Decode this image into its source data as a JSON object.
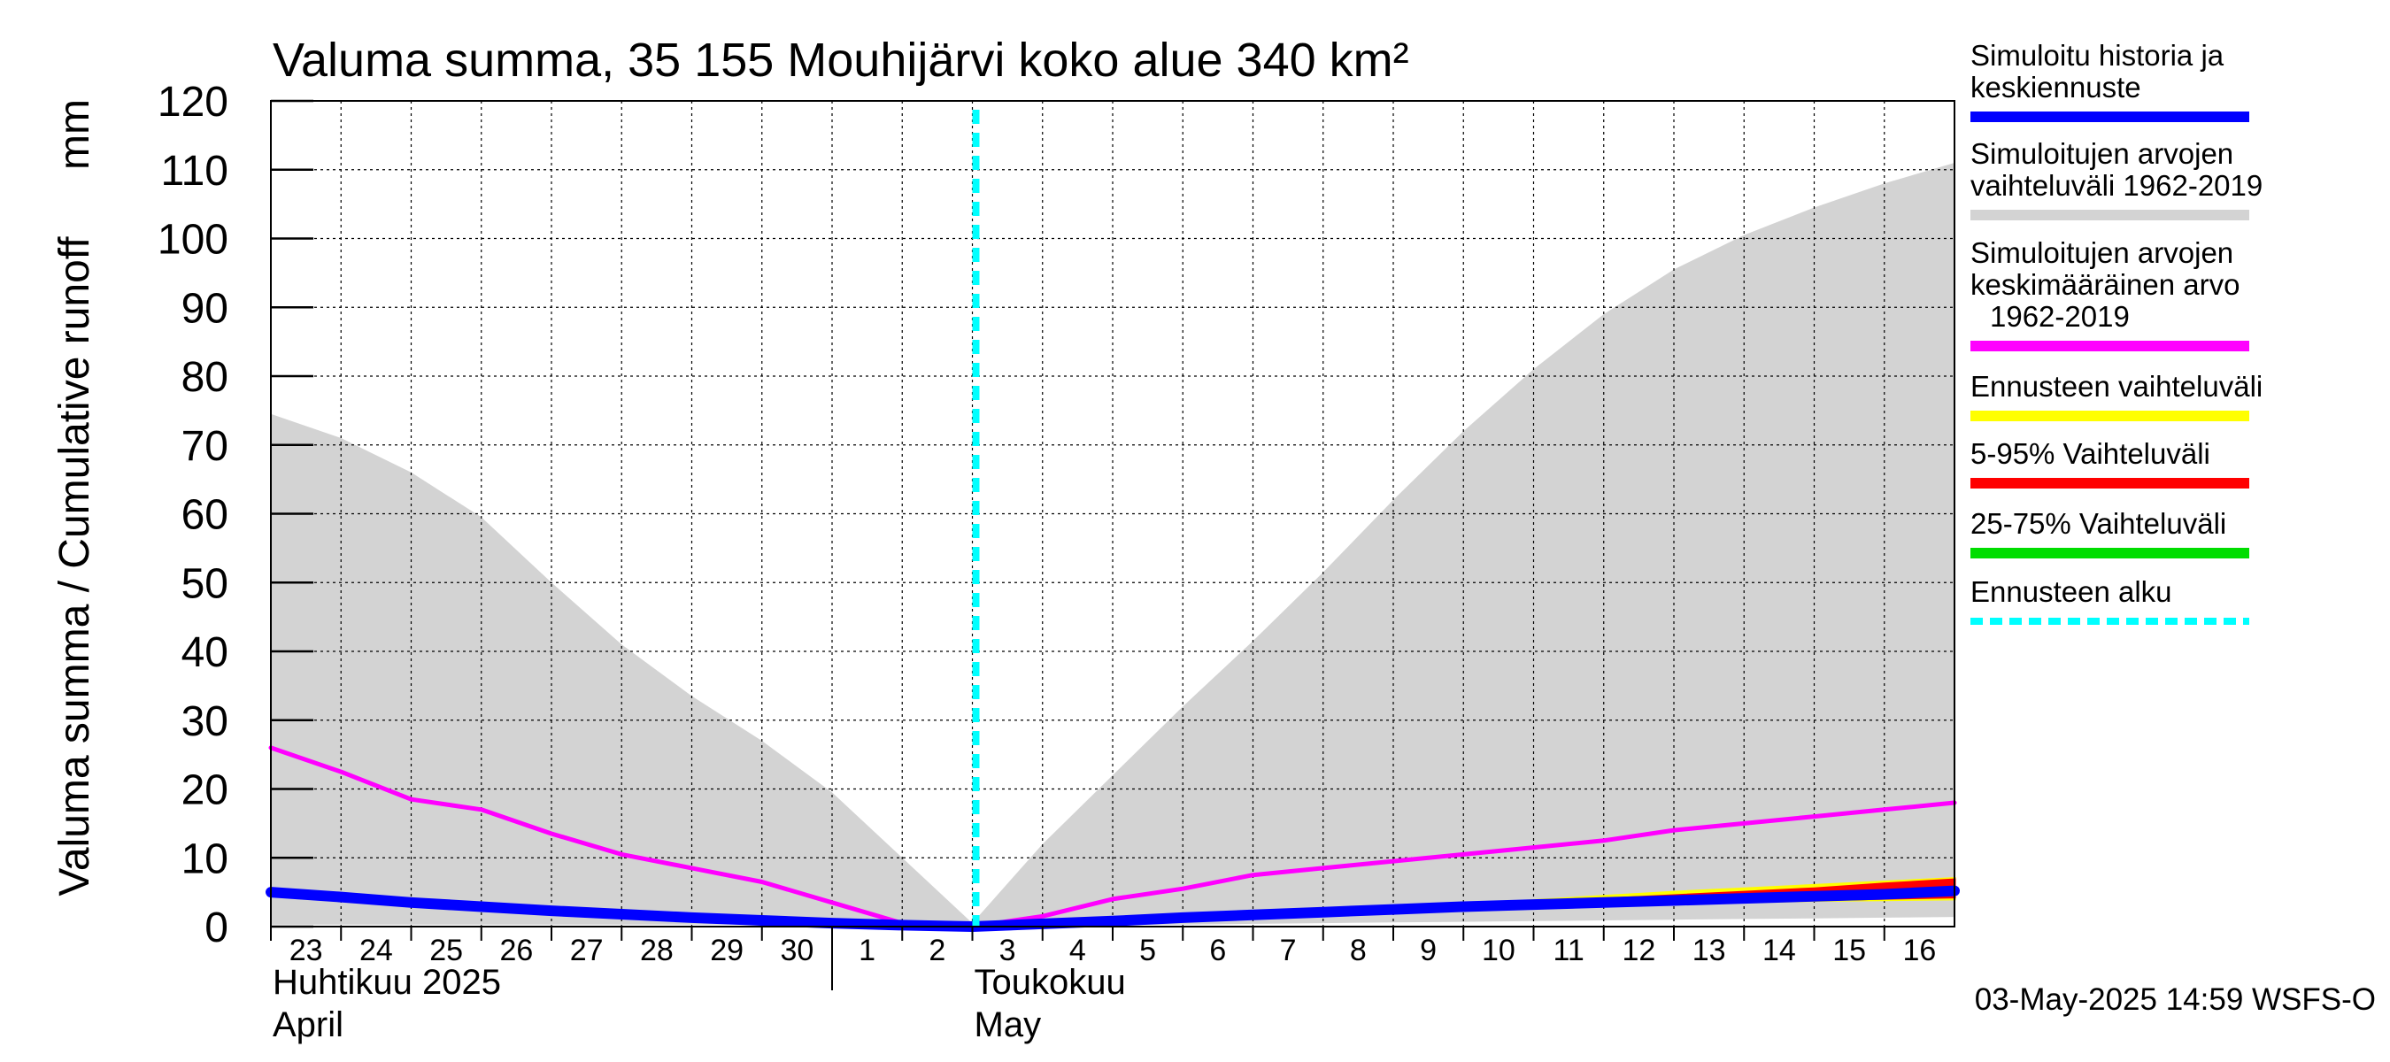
{
  "chart_data": {
    "type": "area",
    "title": "Valuma summa, 35 155 Mouhijärvi koko alue 340 km²",
    "ylabel": "Valuma summa / Cumulative runoff",
    "yunit": "mm",
    "ylim": [
      0,
      120
    ],
    "yticks": [
      0,
      10,
      20,
      30,
      40,
      50,
      60,
      70,
      80,
      90,
      100,
      110,
      120
    ],
    "x_start": "2025-04-23",
    "x_end": "2025-05-16",
    "x_tick_labels": [
      "23",
      "24",
      "25",
      "26",
      "27",
      "28",
      "29",
      "30",
      "1",
      "2",
      "3",
      "4",
      "5",
      "6",
      "7",
      "8",
      "9",
      "10",
      "11",
      "12",
      "13",
      "14",
      "15",
      "16"
    ],
    "month_labels": [
      {
        "fi": "Huhtikuu  2025",
        "en": "April"
      },
      {
        "fi": "Toukokuu",
        "en": "May"
      }
    ],
    "forecast_start": "2025-05-03",
    "grid": true,
    "legend_position": "right",
    "legend": [
      {
        "label": "Simuloitu historia ja keskiennuste",
        "color": "#0000ff",
        "style": "solid"
      },
      {
        "label": "Simuloitujen arvojen vaihteluväli 1962-2019",
        "color": "#d3d3d3",
        "style": "solid"
      },
      {
        "label": "Simuloitujen arvojen keskimääräinen arvo 1962-2019",
        "color": "#ff00ff",
        "style": "solid"
      },
      {
        "label": "Ennusteen vaihteluväli",
        "color": "#ffff00",
        "style": "solid"
      },
      {
        "label": "5-95% Vaihteluväli",
        "color": "#ff0000",
        "style": "solid"
      },
      {
        "label": "25-75% Vaihteluväli",
        "color": "#00dd00",
        "style": "solid"
      },
      {
        "label": "Ennusteen alku",
        "color": "#00ffff",
        "style": "dashed"
      }
    ],
    "x": [
      "2025-04-23",
      "2025-04-24",
      "2025-04-25",
      "2025-04-26",
      "2025-04-27",
      "2025-04-28",
      "2025-04-29",
      "2025-04-30",
      "2025-05-01",
      "2025-05-02",
      "2025-05-03",
      "2025-05-04",
      "2025-05-05",
      "2025-05-06",
      "2025-05-07",
      "2025-05-08",
      "2025-05-09",
      "2025-05-10",
      "2025-05-11",
      "2025-05-12",
      "2025-05-13",
      "2025-05-14",
      "2025-05-15",
      "2025-05-16",
      "2025-05-17"
    ],
    "range_band": {
      "upper": [
        74.5,
        71,
        66,
        59.5,
        50,
        41,
        33.5,
        27,
        19.5,
        10,
        0.5,
        12,
        22,
        32,
        41.5,
        51.5,
        62,
        72,
        81,
        89,
        95.5,
        100.5,
        104.5,
        108,
        111
      ],
      "lower": [
        0.3,
        0.3,
        0.3,
        0.3,
        0.3,
        0.3,
        0.3,
        0.3,
        0.3,
        0.3,
        0,
        0.1,
        0.2,
        0.3,
        0.4,
        0.5,
        0.6,
        0.7,
        0.8,
        0.9,
        1.0,
        1.1,
        1.2,
        1.3,
        1.4
      ]
    },
    "series": [
      {
        "name": "Simuloitujen arvojen keskimääräinen arvo 1962-2019",
        "color": "#ff00ff",
        "values": [
          26,
          22.5,
          18.5,
          17,
          13.5,
          10.5,
          8.5,
          6.5,
          3.5,
          0.5,
          0,
          1.5,
          4,
          5.5,
          7.5,
          8.5,
          9.5,
          10.5,
          11.5,
          12.5,
          14,
          15,
          16,
          17,
          18
        ]
      },
      {
        "name": "Simuloitu historia ja keskiennuste",
        "color": "#0000ff",
        "values": [
          5,
          4.3,
          3.5,
          2.9,
          2.3,
          1.8,
          1.3,
          0.9,
          0.5,
          0.2,
          0,
          0.4,
          0.8,
          1.3,
          1.7,
          2.1,
          2.5,
          2.9,
          3.2,
          3.5,
          3.8,
          4.1,
          4.4,
          4.7,
          5.2
        ]
      }
    ],
    "forecast_bands": [
      {
        "name": "Ennusteen vaihteluväli",
        "color": "#ffff00",
        "lower": [
          0,
          0.4,
          0.8,
          1.2,
          1.6,
          1.9,
          2.2,
          2.5,
          2.8,
          3.1,
          3.4,
          3.6,
          3.8,
          3.9,
          4.0
        ],
        "upper": [
          0,
          0.5,
          0.9,
          1.4,
          1.8,
          2.3,
          2.7,
          3.2,
          3.8,
          4.4,
          5.0,
          5.5,
          6.0,
          6.5,
          7.0
        ]
      },
      {
        "name": "5-95% Vaihteluväli",
        "color": "#ff0000",
        "lower": [
          0,
          0.4,
          0.8,
          1.2,
          1.6,
          2.0,
          2.3,
          2.6,
          2.9,
          3.2,
          3.5,
          3.7,
          3.9,
          4.1,
          4.3
        ],
        "upper": [
          0,
          0.4,
          0.9,
          1.3,
          1.8,
          2.2,
          2.6,
          3.0,
          3.5,
          4.0,
          4.5,
          5.0,
          5.5,
          6.2,
          6.8
        ]
      },
      {
        "name": "25-75% Vaihteluväli",
        "color": "#00dd00",
        "lower": [
          0,
          0.4,
          0.8,
          1.2,
          1.7,
          2.1,
          2.5,
          2.8,
          3.1,
          3.4,
          3.7,
          4.0,
          4.3,
          4.5,
          4.8
        ],
        "upper": [
          0,
          0.4,
          0.8,
          1.3,
          1.7,
          2.1,
          2.5,
          2.9,
          3.3,
          3.6,
          3.9,
          4.2,
          4.5,
          4.9,
          5.4
        ]
      }
    ],
    "forecast_x": [
      "2025-05-03",
      "2025-05-04",
      "2025-05-05",
      "2025-05-06",
      "2025-05-07",
      "2025-05-08",
      "2025-05-09",
      "2025-05-10",
      "2025-05-11",
      "2025-05-12",
      "2025-05-13",
      "2025-05-14",
      "2025-05-15",
      "2025-05-16",
      "2025-05-17"
    ],
    "timestamp": "03-May-2025 14:59 WSFS-O"
  }
}
